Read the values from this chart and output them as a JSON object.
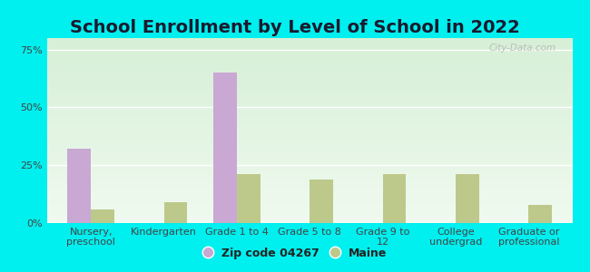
{
  "title": "School Enrollment by Level of School in 2022",
  "categories": [
    "Nursery,\npreschool",
    "Kindergarten",
    "Grade 1 to 4",
    "Grade 5 to 8",
    "Grade 9 to\n12",
    "College\nundergrad",
    "Graduate or\nprofessional"
  ],
  "zip_values": [
    32,
    0,
    65,
    0,
    0,
    0,
    0
  ],
  "maine_values": [
    6,
    9,
    21,
    19,
    21,
    21,
    8
  ],
  "zip_color": "#c9a8d4",
  "maine_color": "#bdc98a",
  "background_outer": "#00efef",
  "background_inner_top": "#d6efd6",
  "background_inner_bottom": "#f0faf0",
  "title_fontsize": 14,
  "tick_fontsize": 8,
  "legend_fontsize": 9,
  "ylim": [
    0,
    80
  ],
  "yticks": [
    0,
    25,
    50,
    75
  ],
  "ytick_labels": [
    "0%",
    "25%",
    "50%",
    "75%"
  ],
  "watermark": "City-Data.com",
  "legend_labels": [
    "Zip code 04267",
    "Maine"
  ],
  "bar_width": 0.32
}
